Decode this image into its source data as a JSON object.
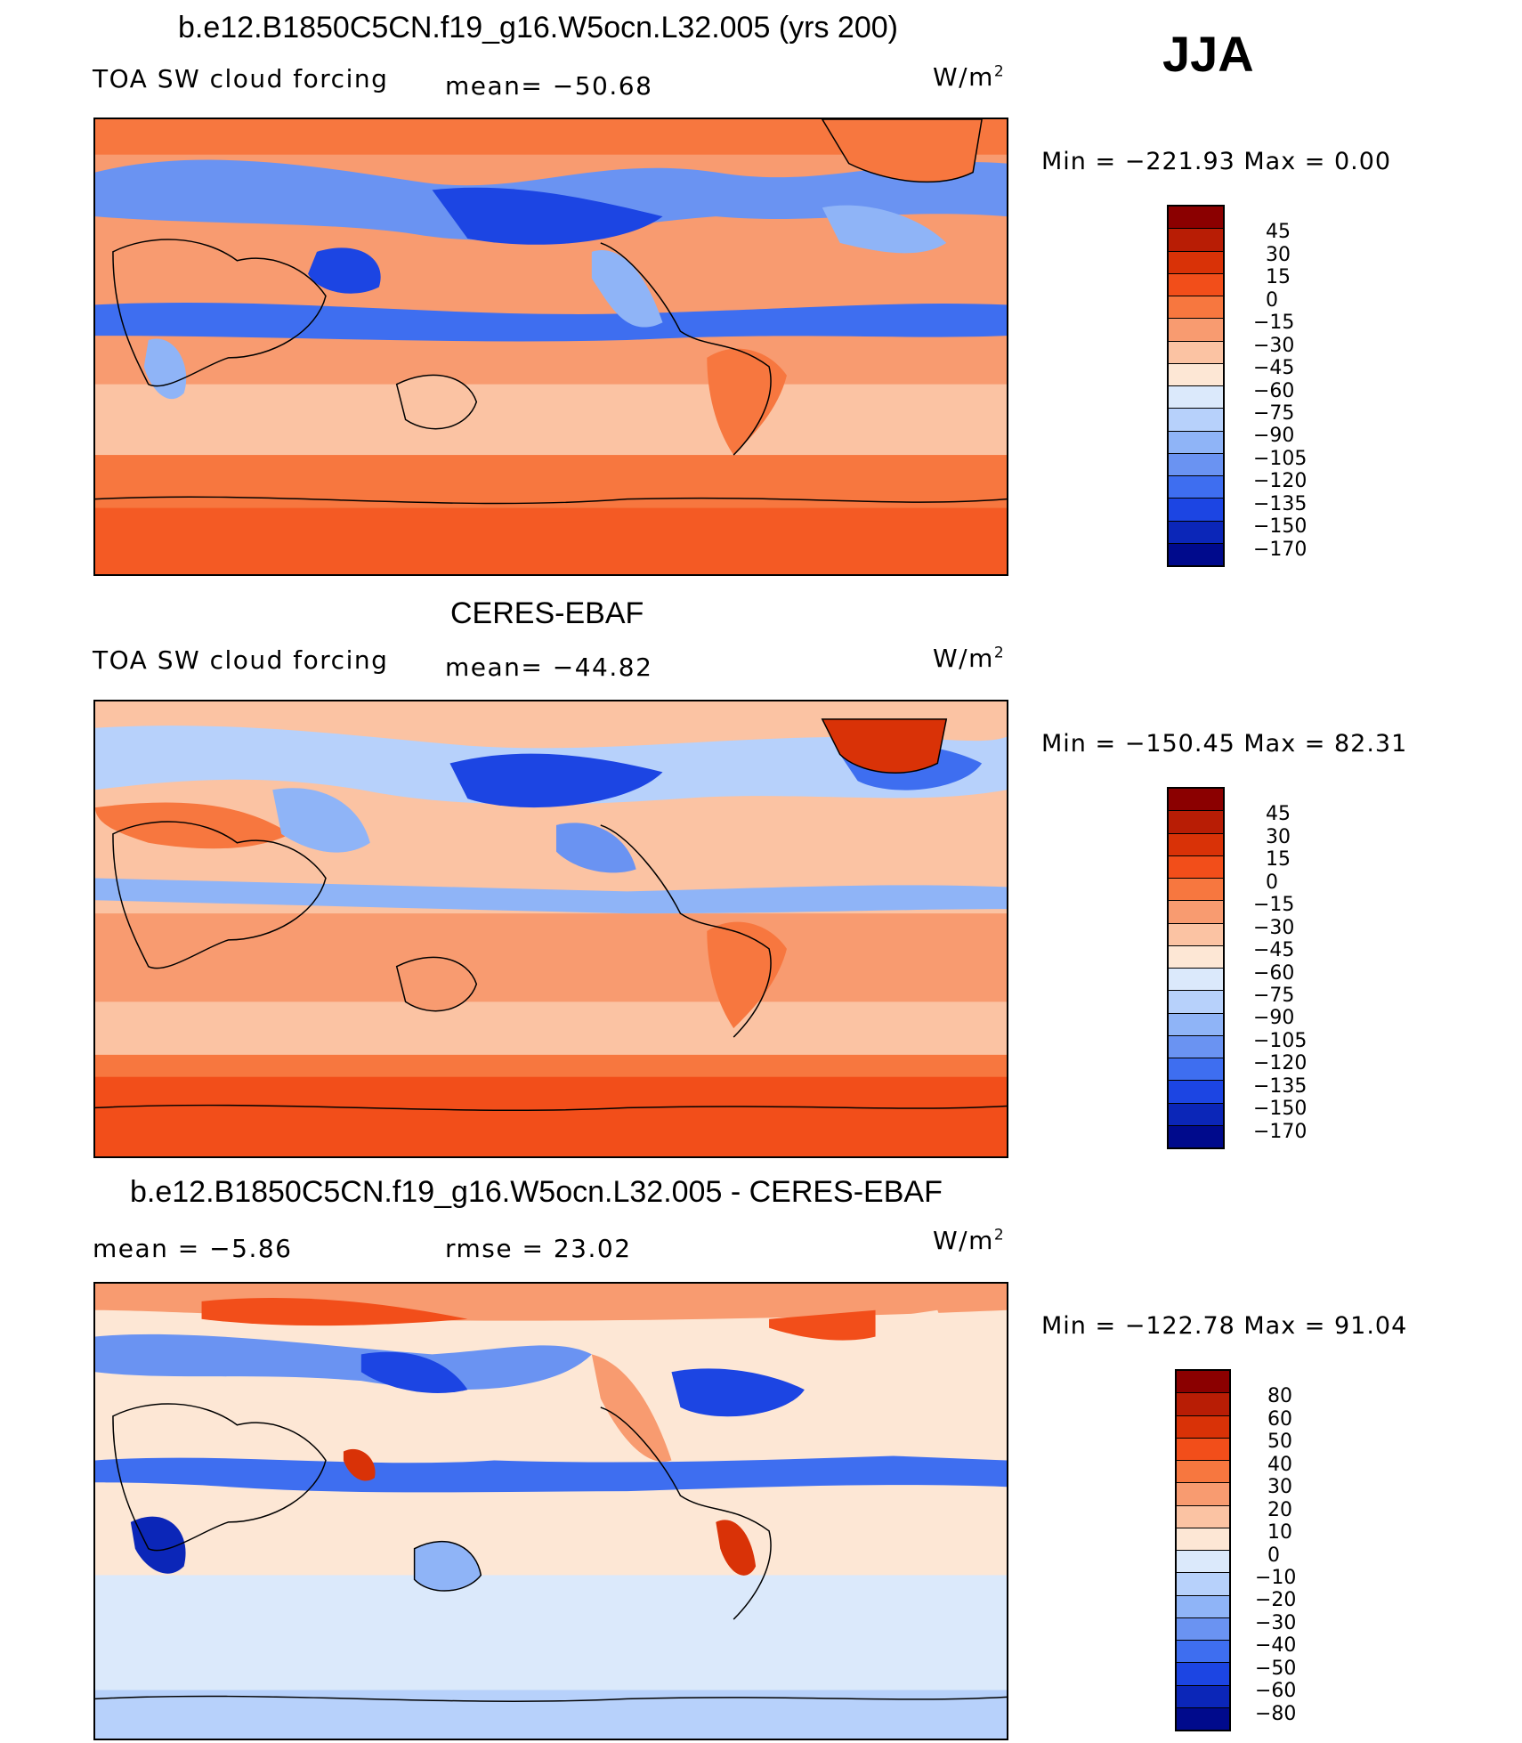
{
  "season": "JJA",
  "units": "W/m",
  "units_sup": "2",
  "panels": [
    {
      "title": "b.e12.B1850C5CN.f19_g16.W5ocn.L32.005 (yrs 200)",
      "left_label": "TOA SW cloud forcing",
      "mid_label": "mean=  −50.68",
      "minmax": "Min  =  −221.93  Max  =     0.00",
      "kind": "model"
    },
    {
      "title": "CERES-EBAF",
      "left_label": "TOA SW cloud forcing",
      "mid_label": "mean=  −44.82",
      "minmax": "Min  =  −150.45  Max  =    82.31",
      "kind": "obs"
    },
    {
      "title": "b.e12.B1850C5CN.f19_g16.W5ocn.L32.005 - CERES-EBAF",
      "left_label": "mean  =    −5.86",
      "mid_label": "rmse  =    23.02",
      "minmax": "Min  =  −122.78  Max  =    91.04",
      "kind": "diff"
    }
  ],
  "colorbars": {
    "field": {
      "labels": [
        "45",
        "30",
        "15",
        "0",
        "−15",
        "−30",
        "−45",
        "−60",
        "−75",
        "−90",
        "−105",
        "−120",
        "−135",
        "−150",
        "−170"
      ],
      "colors": [
        "#8b0000",
        "#b81d05",
        "#d93207",
        "#f24e1a",
        "#f7773f",
        "#f89b70",
        "#fbc3a3",
        "#fde7d5",
        "#dbe9fb",
        "#b7d1fb",
        "#8fb4f7",
        "#6a93f2",
        "#3e6ef0",
        "#1c45e3",
        "#0b26b8",
        "#000a8c"
      ]
    },
    "diff": {
      "labels": [
        "80",
        "60",
        "50",
        "40",
        "30",
        "20",
        "10",
        "0",
        "−10",
        "−20",
        "−30",
        "−40",
        "−50",
        "−60",
        "−80"
      ],
      "colors": [
        "#8b0000",
        "#b81d05",
        "#d93207",
        "#f24e1a",
        "#f7773f",
        "#f89b70",
        "#fbc3a3",
        "#fde7d5",
        "#dbe9fb",
        "#b7d1fb",
        "#8fb4f7",
        "#6a93f2",
        "#3e6ef0",
        "#1c45e3",
        "#0b26b8",
        "#000a8c"
      ]
    }
  }
}
